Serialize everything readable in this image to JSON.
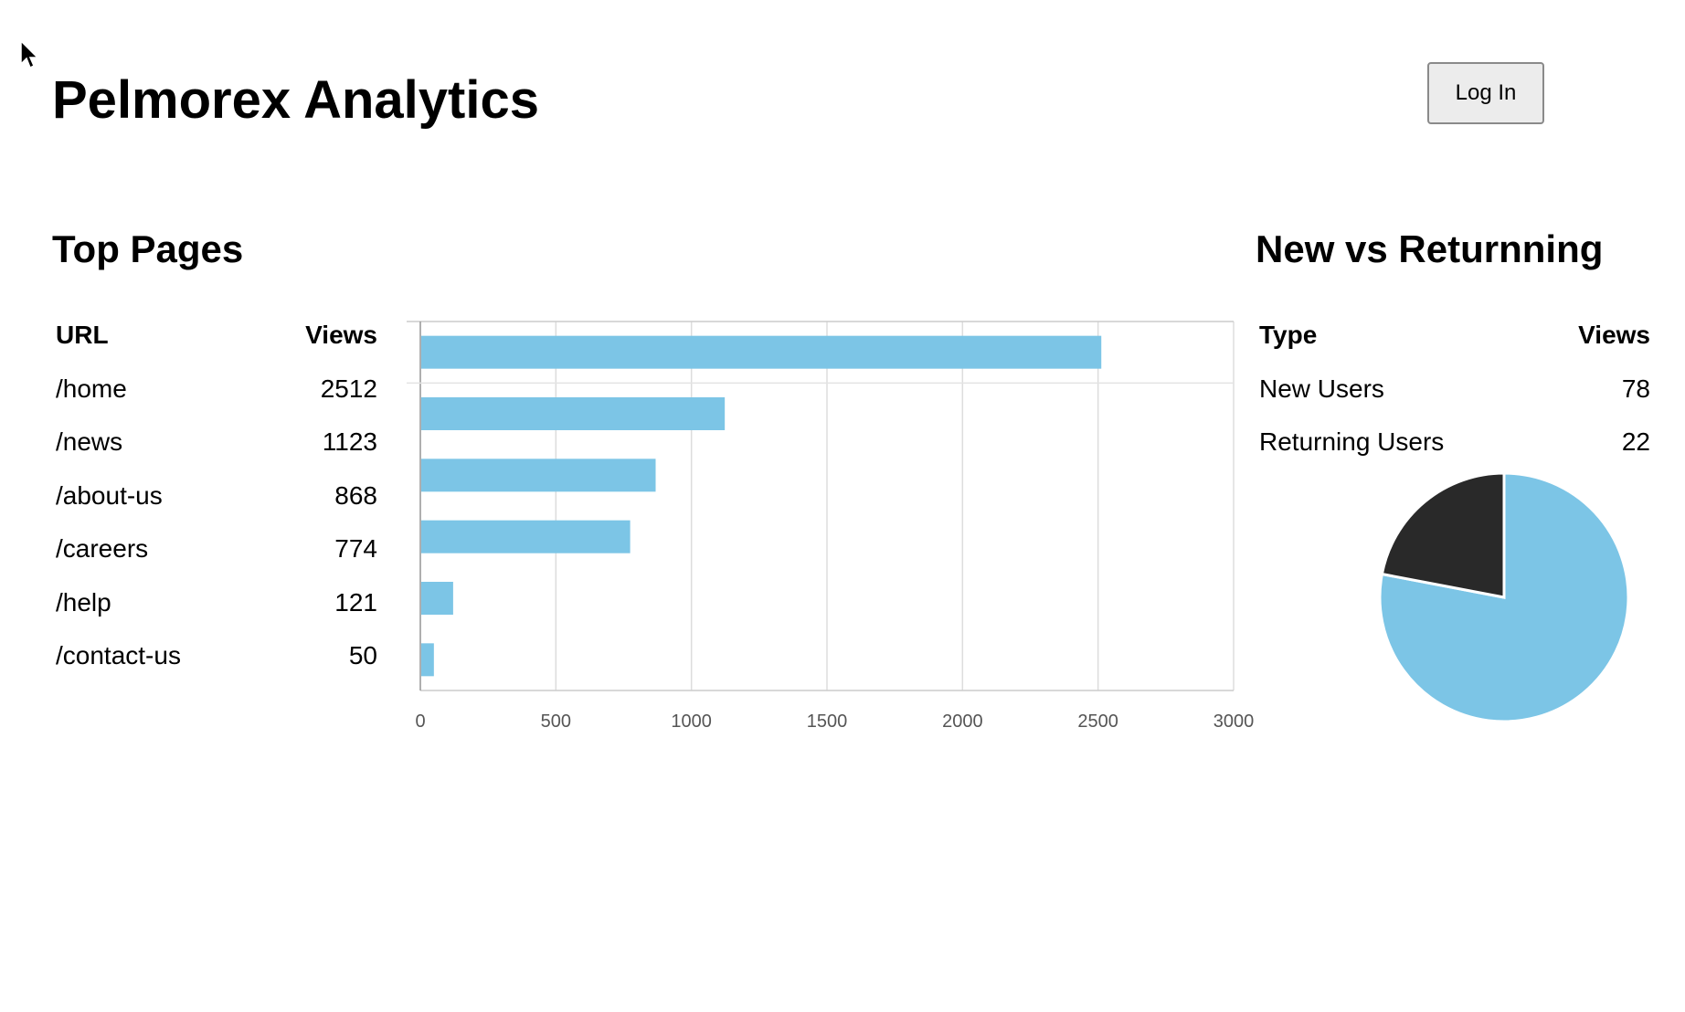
{
  "header": {
    "title": "Pelmorex Analytics",
    "login_label": "Log In"
  },
  "top_pages": {
    "title": "Top Pages",
    "columns": [
      "URL",
      "Views"
    ],
    "rows": [
      {
        "url": "/home",
        "views": "2512"
      },
      {
        "url": "/news",
        "views": "1123"
      },
      {
        "url": "/about-us",
        "views": "868"
      },
      {
        "url": "/careers",
        "views": "774"
      },
      {
        "url": "/help",
        "views": "121"
      },
      {
        "url": "/contact-us",
        "views": "50"
      }
    ]
  },
  "new_vs_returning": {
    "title": "New vs Returnning",
    "columns": [
      "Type",
      "Views"
    ],
    "rows": [
      {
        "type": "New Users",
        "views": "78"
      },
      {
        "type": "Returning Users",
        "views": "22"
      }
    ]
  },
  "chart_data": [
    {
      "type": "bar",
      "orientation": "horizontal",
      "categories": [
        "/home",
        "/news",
        "/about-us",
        "/careers",
        "/help",
        "/contact-us"
      ],
      "values": [
        2512,
        1123,
        868,
        774,
        121,
        50
      ],
      "xlim": [
        0,
        3000
      ],
      "xticks": [
        0,
        500,
        1000,
        1500,
        2000,
        2500,
        3000
      ],
      "grid": true,
      "color": "#7cc5e6"
    },
    {
      "type": "pie",
      "categories": [
        "New Users",
        "Returning Users"
      ],
      "values": [
        78,
        22
      ],
      "colors": [
        "#7cc5e6",
        "#292929"
      ]
    }
  ]
}
